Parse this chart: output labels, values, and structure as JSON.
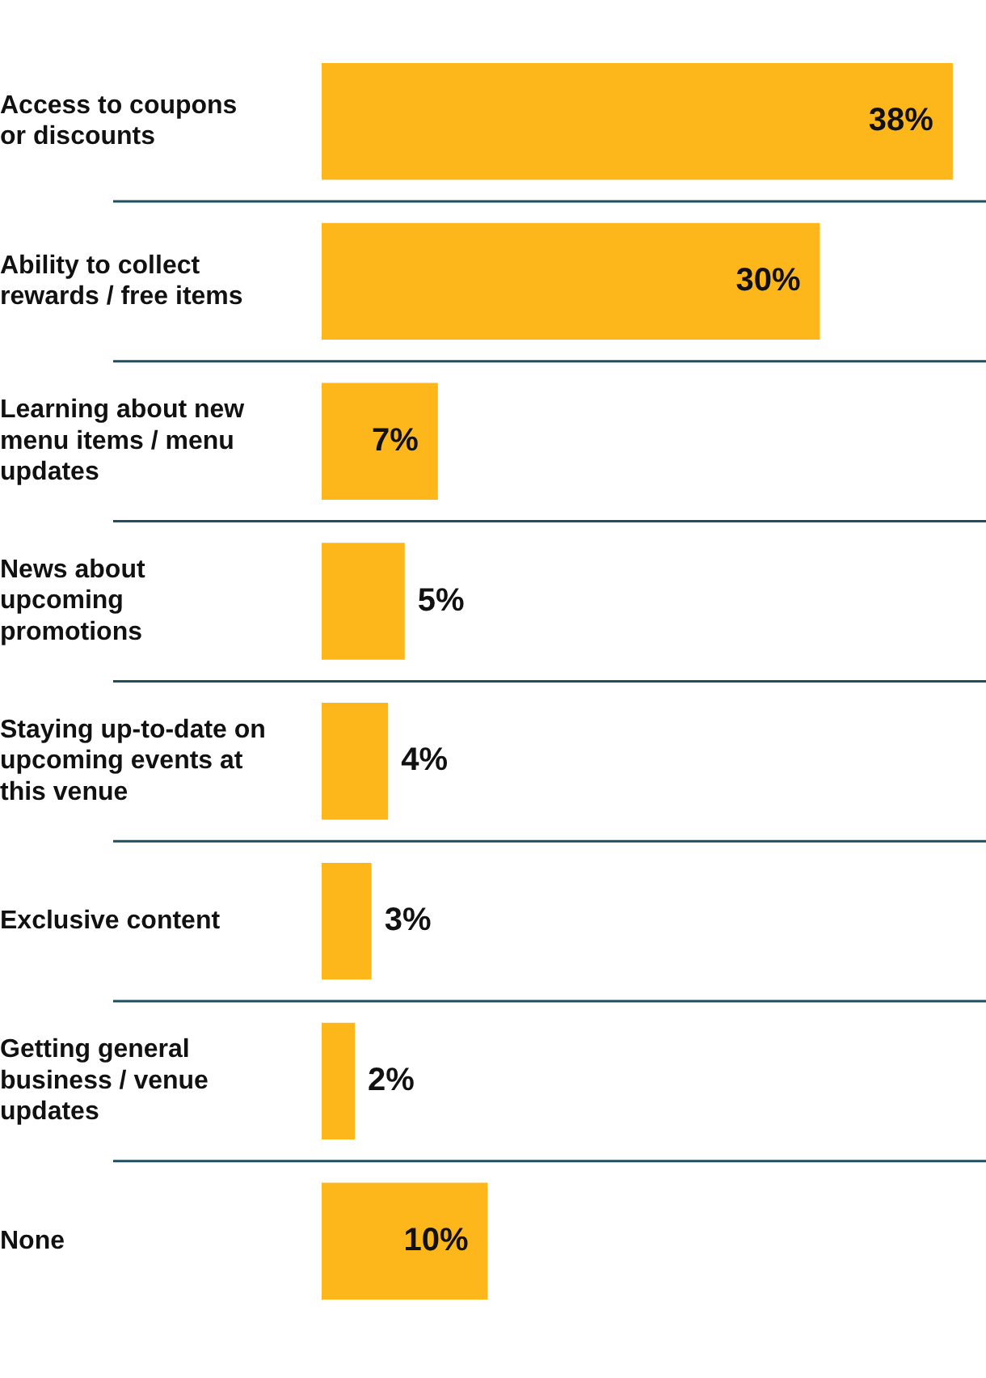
{
  "chart_data": {
    "type": "bar",
    "orientation": "horizontal",
    "categories": [
      "Access to coupons or discounts",
      "Ability to collect rewards / free items",
      "Learning about new menu items / menu updates",
      "News about upcoming promotions",
      "Staying up-to-date on upcoming events at this venue",
      "Exclusive content",
      "Getting general business / venue updates",
      "None"
    ],
    "values": [
      38,
      30,
      7,
      5,
      4,
      3,
      2,
      10
    ],
    "value_labels": [
      "38%",
      "30%",
      "7%",
      "5%",
      "4%",
      "3%",
      "2%",
      "10%"
    ],
    "color": "#fdb71a",
    "grid": "y",
    "legend": false,
    "tick_labels": "y"
  }
}
